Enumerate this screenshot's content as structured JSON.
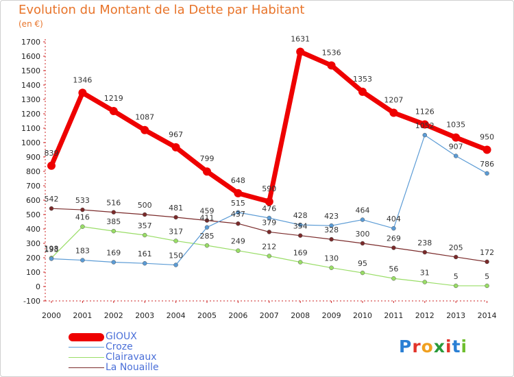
{
  "title": "Evolution du Montant de la Dette par Habitant",
  "subtitle": "(en €)",
  "logo": {
    "letters": [
      "P",
      "r",
      "o",
      "x",
      "i",
      "t",
      "i"
    ],
    "colors": [
      "#2a7fd4",
      "#e2342a",
      "#f0a020",
      "#2a9a3a",
      "#e2342a",
      "#2a7fd4",
      "#6fbf2e"
    ]
  },
  "chart_data": {
    "type": "line",
    "categories": [
      "2000",
      "2001",
      "2002",
      "2003",
      "2004",
      "2005",
      "2006",
      "2007",
      "2008",
      "2009",
      "2010",
      "2011",
      "2012",
      "2013",
      "2014"
    ],
    "ylim": [
      -100,
      1700
    ],
    "yticks": [
      -100,
      0,
      100,
      200,
      300,
      400,
      500,
      600,
      700,
      800,
      900,
      1000,
      1100,
      1200,
      1300,
      1400,
      1500,
      1600,
      1700
    ],
    "xlabel": "",
    "ylabel": "",
    "grid": false,
    "legend_position": "bottom-left",
    "series": [
      {
        "name": "GIOUX",
        "color": "#ee0000",
        "values": [
          839,
          1346,
          1219,
          1087,
          967,
          799,
          648,
          590,
          1631,
          1536,
          1353,
          1207,
          1126,
          1035,
          950
        ]
      },
      {
        "name": "Croze",
        "color": "#5b9bd5",
        "values": [
          193,
          183,
          169,
          161,
          150,
          411,
          515,
          476,
          428,
          423,
          464,
          404,
          1052,
          907,
          786
        ]
      },
      {
        "name": "Clairavaux",
        "color": "#99dd66",
        "values": [
          198,
          416,
          385,
          357,
          317,
          285,
          249,
          212,
          169,
          130,
          95,
          56,
          31,
          5,
          5
        ]
      },
      {
        "name": "La Nouaille",
        "color": "#7a2a2a",
        "values": [
          542,
          533,
          516,
          500,
          481,
          459,
          437,
          379,
          354,
          328,
          300,
          269,
          238,
          205,
          172
        ]
      }
    ]
  }
}
